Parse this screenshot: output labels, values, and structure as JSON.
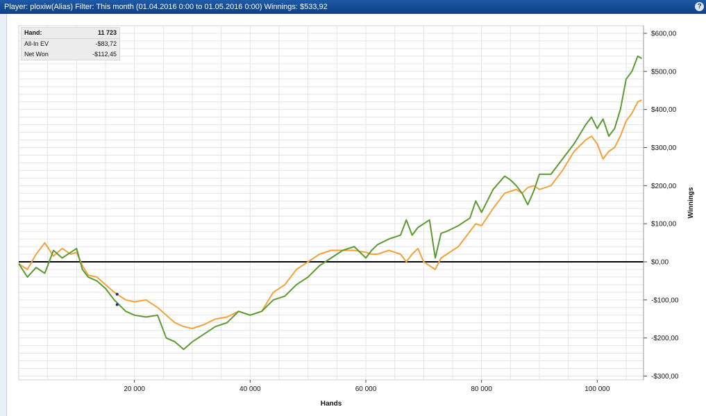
{
  "window": {
    "title": "Player: ploxiw(Alias) Filter: This month (01.04.2016 0:00 to 01.05.2016 0:00) Winnings: $533,92",
    "help_label": "?"
  },
  "stats": {
    "rows": [
      {
        "label": "Hand:",
        "value": "11 723"
      },
      {
        "label": "All-In EV",
        "value": "-$83,72"
      },
      {
        "label": "Net Won",
        "value": "-$112,45"
      }
    ]
  },
  "colors": {
    "net_won": "#5a9a2e",
    "all_in_ev": "#f6a03c",
    "zero_line": "#000000",
    "grid": "#e4e4e4",
    "markers": "#1a2aa0"
  },
  "chart_data": {
    "type": "line",
    "xlabel": "Hands",
    "ylabel": "Winnings",
    "xlim": [
      0,
      108000
    ],
    "ylim": [
      -310,
      620
    ],
    "x_ticks": [
      20000,
      40000,
      60000,
      80000,
      100000
    ],
    "x_tick_labels": [
      "20 000",
      "40 000",
      "60 000",
      "80 000",
      "100 000"
    ],
    "y_ticks": [
      -300,
      -200,
      -100,
      0,
      100,
      200,
      300,
      400,
      500,
      600
    ],
    "y_tick_labels": [
      "-$300,00",
      "-$200,00",
      "-$100,00",
      "$0,00",
      "$100,00",
      "$200,00",
      "$300,00",
      "$400,00",
      "$500,00",
      "$600,00"
    ],
    "grid": true,
    "series": [
      {
        "key": "net_won",
        "x": [
          0,
          1500,
          3000,
          4500,
          6000,
          7500,
          9000,
          10000,
          11000,
          12000,
          13500,
          15000,
          16500,
          17500,
          18500,
          20000,
          22000,
          24000,
          25500,
          27000,
          28500,
          30000,
          32000,
          34000,
          36000,
          38000,
          40000,
          42000,
          44000,
          46000,
          48000,
          50000,
          52000,
          54000,
          56000,
          58000,
          60000,
          61000,
          62000,
          64000,
          66000,
          67000,
          68000,
          69000,
          70000,
          71000,
          72000,
          73000,
          74000,
          76000,
          78000,
          79000,
          80000,
          82000,
          84000,
          85000,
          86000,
          87000,
          88000,
          89000,
          90000,
          92000,
          94000,
          96000,
          98000,
          99000,
          100000,
          101000,
          102000,
          103000,
          104000,
          105000,
          106000,
          107000,
          107700
        ],
        "y": [
          -5,
          -40,
          -15,
          -30,
          30,
          10,
          25,
          35,
          -20,
          -40,
          -50,
          -70,
          -100,
          -115,
          -130,
          -140,
          -145,
          -140,
          -200,
          -210,
          -230,
          -210,
          -190,
          -170,
          -160,
          -130,
          -140,
          -130,
          -100,
          -90,
          -60,
          -40,
          -10,
          10,
          30,
          40,
          10,
          30,
          45,
          60,
          70,
          110,
          70,
          90,
          100,
          110,
          10,
          75,
          80,
          95,
          115,
          160,
          130,
          190,
          225,
          215,
          200,
          180,
          150,
          185,
          230,
          230,
          270,
          310,
          360,
          380,
          350,
          375,
          330,
          350,
          400,
          480,
          500,
          540,
          533.92
        ]
      },
      {
        "key": "all_in_ev",
        "x": [
          0,
          1500,
          3000,
          4500,
          6000,
          7500,
          9000,
          10000,
          11000,
          12000,
          13500,
          15000,
          16500,
          17500,
          18500,
          20000,
          22000,
          24000,
          25500,
          27000,
          28500,
          30000,
          32000,
          34000,
          36000,
          38000,
          40000,
          42000,
          44000,
          46000,
          48000,
          50000,
          52000,
          54000,
          56000,
          58000,
          60000,
          61000,
          62000,
          64000,
          66000,
          67000,
          68000,
          69000,
          70000,
          71000,
          72000,
          73000,
          74000,
          76000,
          78000,
          79000,
          80000,
          82000,
          84000,
          85000,
          86000,
          87000,
          88000,
          89000,
          90000,
          92000,
          94000,
          96000,
          98000,
          99000,
          100000,
          101000,
          102000,
          103000,
          104000,
          105000,
          106000,
          107000,
          107700
        ],
        "y": [
          -5,
          -20,
          20,
          50,
          15,
          35,
          20,
          25,
          -10,
          -35,
          -40,
          -60,
          -80,
          -90,
          -100,
          -105,
          -100,
          -120,
          -140,
          -160,
          -170,
          -175,
          -165,
          -150,
          -145,
          -130,
          -140,
          -130,
          -80,
          -60,
          -20,
          0,
          20,
          30,
          30,
          30,
          25,
          20,
          20,
          30,
          20,
          0,
          20,
          35,
          0,
          -10,
          -20,
          10,
          20,
          40,
          80,
          100,
          95,
          140,
          180,
          185,
          190,
          180,
          195,
          200,
          190,
          200,
          240,
          290,
          320,
          330,
          310,
          270,
          290,
          300,
          330,
          370,
          390,
          420,
          425
        ]
      }
    ],
    "markers": [
      {
        "series": "all_in_ev",
        "x": 17000,
        "y": -85
      },
      {
        "series": "net_won",
        "x": 17000,
        "y": -112.45
      }
    ]
  }
}
